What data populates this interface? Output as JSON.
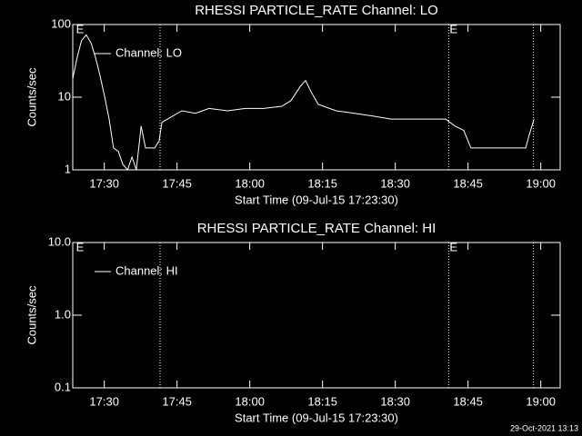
{
  "chart_data": [
    {
      "type": "line",
      "title": "RHESSI PARTICLE_RATE Channel: LO",
      "xlabel": "Start Time (09-Jul-15 17:23:30)",
      "ylabel": "Counts/sec",
      "xlim": [
        1043.5,
        1144
      ],
      "xticks": [
        {
          "value": 1050,
          "label": "17:30"
        },
        {
          "value": 1065,
          "label": "17:45"
        },
        {
          "value": 1080,
          "label": "18:00"
        },
        {
          "value": 1095,
          "label": "18:15"
        },
        {
          "value": 1110,
          "label": "18:30"
        },
        {
          "value": 1125,
          "label": "18:45"
        },
        {
          "value": 1140,
          "label": "19:00"
        }
      ],
      "ylim": [
        1,
        100
      ],
      "yticks": [
        1,
        10,
        100
      ],
      "log_y": true,
      "vlines": [
        1061.5,
        1121,
        1138.5
      ],
      "annotations": [
        {
          "text": "E",
          "x": 1044
        },
        {
          "text": "E",
          "x": 1121
        }
      ],
      "series": [
        {
          "name": "Channel: LO",
          "color": "#ffffff",
          "x": [
            1043.5,
            1044.4,
            1045.3,
            1046.3,
            1047.3,
            1048.2,
            1049.1,
            1050.1,
            1051.0,
            1051.9,
            1052.9,
            1053.8,
            1054.8,
            1055.7,
            1056.6,
            1057.6,
            1058.5,
            1060.4,
            1061.3,
            1061.9,
            1064.1,
            1066.0,
            1068.8,
            1071.6,
            1075.4,
            1079.1,
            1082.9,
            1086.6,
            1088.5,
            1090.4,
            1091.5,
            1092.6,
            1094.1,
            1097.8,
            1101.6,
            1105.4,
            1109.1,
            1112.9,
            1116.6,
            1120.4,
            1122.3,
            1124.1,
            1125.6,
            1129.8,
            1133.5,
            1136.9,
            1137.6,
            1138.6
          ],
          "values": [
            18,
            35,
            60,
            72,
            55,
            35,
            20,
            10,
            5,
            2,
            1.8,
            1.2,
            1,
            1.5,
            1,
            4,
            2,
            2,
            2.5,
            4.5,
            5.5,
            6.5,
            6,
            7,
            6.5,
            7,
            7,
            7.5,
            9,
            14,
            17,
            12,
            8,
            6.5,
            6,
            5.5,
            5,
            5,
            5,
            5,
            4,
            3.5,
            2,
            2,
            2,
            2,
            3,
            5
          ]
        }
      ]
    },
    {
      "type": "line",
      "title": "RHESSI PARTICLE_RATE Channel: HI",
      "xlabel": "Start Time (09-Jul-15 17:23:30)",
      "ylabel": "Counts/sec",
      "xlim": [
        1043.5,
        1144
      ],
      "xticks": [
        {
          "value": 1050,
          "label": "17:30"
        },
        {
          "value": 1065,
          "label": "17:45"
        },
        {
          "value": 1080,
          "label": "18:00"
        },
        {
          "value": 1095,
          "label": "18:15"
        },
        {
          "value": 1110,
          "label": "18:30"
        },
        {
          "value": 1125,
          "label": "18:45"
        },
        {
          "value": 1140,
          "label": "19:00"
        }
      ],
      "ylim": [
        0.1,
        10
      ],
      "yticks": [
        0.1,
        {
          "value": 1,
          "label": "1.0"
        },
        {
          "value": 10,
          "label": "10.0"
        }
      ],
      "log_y": true,
      "vlines": [
        1061.5,
        1121,
        1138.5
      ],
      "annotations": [
        {
          "text": "E",
          "x": 1044
        },
        {
          "text": "E",
          "x": 1121
        }
      ],
      "series": [
        {
          "name": "Channel: HI",
          "color": "#ffffff",
          "x": [],
          "values": []
        }
      ]
    }
  ],
  "footer": "29-Oct-2021 13:13"
}
